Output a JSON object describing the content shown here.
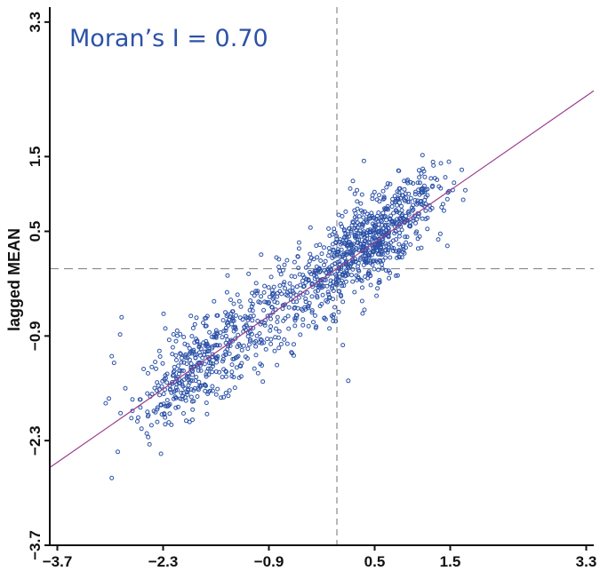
{
  "chart_data": {
    "type": "scatter",
    "title": "",
    "annotation": "Moran’s I = 0.70",
    "xlabel": "",
    "ylabel": "lagged MEAN",
    "xlim": [
      -3.8,
      3.4
    ],
    "ylim": [
      -3.7,
      3.5
    ],
    "xticks": [
      -3.7,
      -2.3,
      -0.9,
      0.5,
      1.5,
      3.3
    ],
    "yticks": [
      -3.7,
      -2.3,
      -0.9,
      0.5,
      1.5,
      3.3
    ],
    "x_reference": 0.0,
    "y_reference": 0.0,
    "regression_line": {
      "slope": 0.7,
      "intercept": 0.0
    },
    "grid": false,
    "series": [
      {
        "marker": "open-circle",
        "color": "#2c52a8",
        "points": [
          [
            -2.98,
            -1.17
          ],
          [
            -2.95,
            -1.26
          ],
          [
            -2.85,
            -0.65
          ],
          [
            -2.87,
            -0.88
          ],
          [
            -2.8,
            -1.6
          ],
          [
            -2.72,
            -2.0
          ],
          [
            -2.6,
            -1.75
          ],
          [
            -2.5,
            -1.4
          ],
          [
            -2.35,
            -1.1
          ],
          [
            -2.27,
            -0.8
          ],
          [
            -2.1,
            -1.85
          ],
          [
            -2.48,
            -2.35
          ],
          [
            -2.9,
            -2.45
          ],
          [
            -2.98,
            -2.8
          ],
          [
            -3.06,
            -1.8
          ],
          [
            -1.95,
            -2.05
          ],
          [
            -1.75,
            -1.55
          ],
          [
            -1.6,
            -1.2
          ],
          [
            -1.45,
            -0.95
          ],
          [
            -1.4,
            -0.6
          ],
          [
            -1.2,
            -0.75
          ],
          [
            -1.05,
            -0.3
          ],
          [
            -0.9,
            -0.45
          ],
          [
            -0.8,
            0.15
          ],
          [
            -0.6,
            -0.1
          ],
          [
            -0.5,
            0.35
          ],
          [
            -0.35,
            0.55
          ],
          [
            -0.2,
            0.2
          ],
          [
            0.05,
            0.6
          ],
          [
            0.25,
            0.1
          ],
          [
            0.35,
            0.45
          ],
          [
            0.55,
            0.75
          ],
          [
            0.75,
            0.6
          ],
          [
            0.95,
            1.0
          ],
          [
            1.1,
            1.15
          ],
          [
            1.35,
            1.1
          ],
          [
            1.55,
            1.15
          ],
          [
            1.7,
            1.05
          ],
          [
            0.15,
            -1.5
          ],
          [
            -0.05,
            -0.7
          ]
        ]
      }
    ]
  }
}
